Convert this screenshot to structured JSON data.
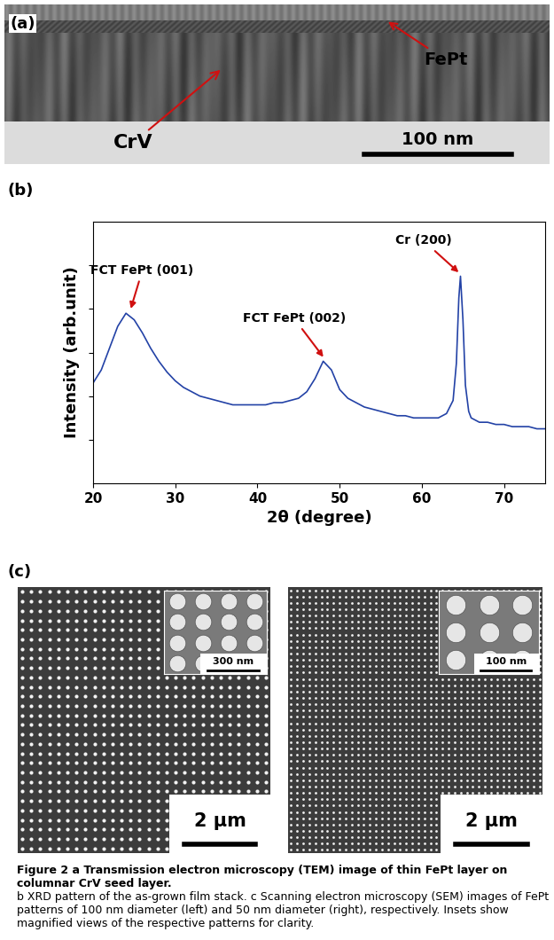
{
  "panel_a": {
    "label": "(a)",
    "annotations": [
      "FePt",
      "CrV"
    ],
    "scale_bar": "100 nm"
  },
  "chart_data": {
    "type": "line",
    "title": "(b)",
    "x_label": "2θ (degree)",
    "y_label": "Intensity (arb.unit)",
    "x": [
      20,
      21,
      22,
      23,
      24,
      25,
      26,
      27,
      28,
      29,
      30,
      31,
      32,
      33,
      34,
      35,
      36,
      37,
      38,
      39,
      40,
      41,
      42,
      43,
      44,
      45,
      46,
      47,
      48,
      49,
      50,
      51,
      52,
      53,
      54,
      55,
      56,
      57,
      58,
      59,
      60,
      61,
      62,
      63,
      63.8,
      64.2,
      64.5,
      64.7,
      65.0,
      65.3,
      65.7,
      66,
      67,
      68,
      69,
      70,
      71,
      72,
      73,
      74,
      75
    ],
    "values": [
      4.6,
      5.2,
      6.2,
      7.2,
      7.8,
      7.5,
      6.9,
      6.2,
      5.6,
      5.1,
      4.7,
      4.4,
      4.2,
      4.0,
      3.9,
      3.8,
      3.7,
      3.6,
      3.6,
      3.6,
      3.6,
      3.6,
      3.7,
      3.7,
      3.8,
      3.9,
      4.2,
      4.8,
      5.6,
      5.2,
      4.3,
      3.9,
      3.7,
      3.5,
      3.4,
      3.3,
      3.2,
      3.1,
      3.1,
      3.0,
      3.0,
      3.0,
      3.0,
      3.2,
      3.8,
      5.5,
      8.5,
      9.5,
      7.5,
      4.5,
      3.3,
      3.0,
      2.8,
      2.8,
      2.7,
      2.7,
      2.6,
      2.6,
      2.6,
      2.5,
      2.5
    ],
    "color": "#2342a6",
    "xlim": [
      20,
      75
    ],
    "xticks": [
      20,
      30,
      40,
      50,
      60,
      70
    ],
    "ylim": [
      0,
      12
    ],
    "yticks": [
      2,
      4,
      6,
      8,
      10
    ],
    "tick_labels": "x",
    "grid": false,
    "annotations": [
      {
        "text": "FCT FePt (001)",
        "x": 24.5,
        "y": 7.9
      },
      {
        "text": "FCT FePt (002)",
        "x": 48.2,
        "y": 5.7
      },
      {
        "text": "Cr (200)",
        "x": 64.7,
        "y": 9.6
      }
    ]
  },
  "panel_c": {
    "label": "(c)",
    "images": [
      {
        "scale_bar": "2 μm",
        "inset_scale_bar": "300 nm"
      },
      {
        "scale_bar": "2 μm",
        "inset_scale_bar": "100 nm"
      }
    ]
  },
  "caption": {
    "title": "Figure 2 a Transmission electron microscopy (TEM) image of thin FePt layer on columnar CrV seed layer.",
    "body": "b XRD pattern of the as-grown film stack. c Scanning electron microscopy (SEM) images of FePt patterns of 100 nm diameter (left) and 50 nm diameter (right), respectively. Insets show magnified views of the respective patterns for clarity."
  }
}
